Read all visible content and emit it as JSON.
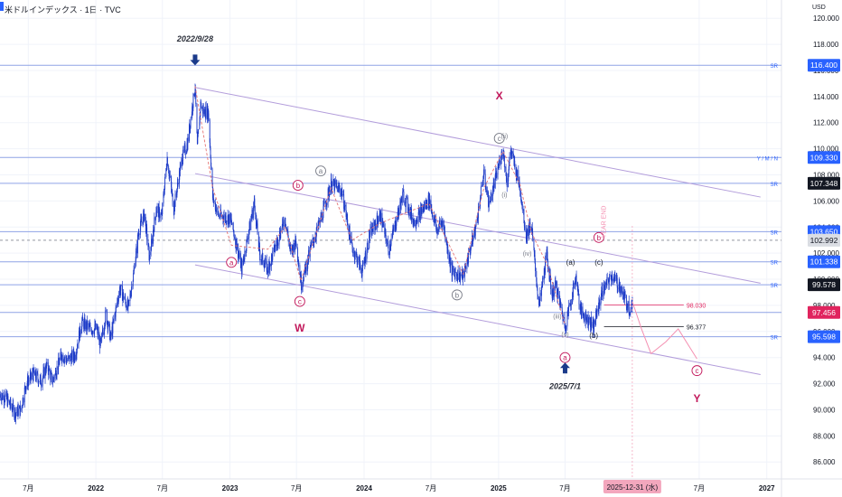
{
  "header": {
    "symbol_title": "米ドルインデックス · 1日 · TVC",
    "currency": "USD"
  },
  "colors": {
    "up": "#1e3cc8",
    "down": "#1e3cc8",
    "price_label_blue": "#2962ff",
    "price_label_black": "#131722",
    "price_label_red": "#e0245e",
    "price_label_grey": "#dadde3",
    "wave_red": "#c2185b",
    "channel": "#b39ddb",
    "sr_line": "#8fa3e6",
    "date_tag_bg": "#f3a7bd"
  },
  "chart_data": {
    "type": "candlestick",
    "title": "米ドルインデックス · 1日 · TVC",
    "ylim": [
      84.7,
      121.4
    ],
    "xlim": [
      "2021-04-15",
      "2027-02-10"
    ],
    "y_ticks": [
      86,
      88,
      90,
      92,
      94,
      96,
      98,
      100,
      102,
      104,
      106,
      108,
      110,
      112,
      114,
      116,
      118,
      120
    ],
    "y_tick_labels": [
      "86.000",
      "88.000",
      "90.000",
      "92.000",
      "94.000",
      "96.000",
      "98.000",
      "100.000",
      "102.000",
      "104.000",
      "106.000",
      "108.000",
      "110.000",
      "112.000",
      "114.000",
      "116.000",
      "118.000",
      "120.000"
    ],
    "x_ticks": [
      {
        "date": "2021-07-01",
        "label": "7月"
      },
      {
        "date": "2022-01-01",
        "label": "2022"
      },
      {
        "date": "2022-07-01",
        "label": "7月"
      },
      {
        "date": "2023-01-01",
        "label": "2023"
      },
      {
        "date": "2023-07-01",
        "label": "7月"
      },
      {
        "date": "2024-01-01",
        "label": "2024"
      },
      {
        "date": "2024-07-01",
        "label": "7月"
      },
      {
        "date": "2025-01-01",
        "label": "2025"
      },
      {
        "date": "2025-07-01",
        "label": "7月"
      },
      {
        "date": "2026-07-01",
        "label": "7月"
      },
      {
        "date": "2027-01-01",
        "label": "2027"
      }
    ],
    "date_tag": {
      "date": "2025-12-31",
      "label": "2025-12-31 (水)"
    },
    "price_path": [
      [
        "2021-04-15",
        91.2
      ],
      [
        "2021-05-01",
        90.9
      ],
      [
        "2021-05-25",
        89.8
      ],
      [
        "2021-06-10",
        90.0
      ],
      [
        "2021-06-25",
        92.0
      ],
      [
        "2021-07-15",
        92.7
      ],
      [
        "2021-08-05",
        92.2
      ],
      [
        "2021-08-20",
        93.4
      ],
      [
        "2021-09-05",
        92.2
      ],
      [
        "2021-09-30",
        94.2
      ],
      [
        "2021-10-15",
        93.8
      ],
      [
        "2021-11-05",
        94.2
      ],
      [
        "2021-11-24",
        96.7
      ],
      [
        "2021-12-15",
        96.2
      ],
      [
        "2022-01-03",
        96.2
      ],
      [
        "2022-01-14",
        94.9
      ],
      [
        "2022-01-28",
        97.4
      ],
      [
        "2022-02-10",
        95.5
      ],
      [
        "2022-03-07",
        99.3
      ],
      [
        "2022-03-30",
        97.8
      ],
      [
        "2022-04-14",
        100.5
      ],
      [
        "2022-04-28",
        103.8
      ],
      [
        "2022-05-13",
        105.0
      ],
      [
        "2022-05-27",
        101.6
      ],
      [
        "2022-06-14",
        105.4
      ],
      [
        "2022-06-29",
        104.8
      ],
      [
        "2022-07-14",
        109.3
      ],
      [
        "2022-08-01",
        105.4
      ],
      [
        "2022-08-23",
        109.2
      ],
      [
        "2022-09-07",
        110.4
      ],
      [
        "2022-09-28",
        114.8
      ],
      [
        "2022-10-04",
        110.1
      ],
      [
        "2022-10-13",
        113.4
      ],
      [
        "2022-10-21",
        112.8
      ],
      [
        "2022-11-03",
        112.9
      ],
      [
        "2022-11-15",
        106.3
      ],
      [
        "2022-12-01",
        104.9
      ],
      [
        "2022-12-15",
        104.8
      ],
      [
        "2023-01-03",
        104.6
      ],
      [
        "2023-02-02",
        100.8
      ],
      [
        "2023-03-08",
        105.9
      ],
      [
        "2023-03-23",
        101.9
      ],
      [
        "2023-04-14",
        100.8
      ],
      [
        "2023-05-31",
        104.7
      ],
      [
        "2023-06-15",
        102.0
      ],
      [
        "2023-06-30",
        103.0
      ],
      [
        "2023-07-14",
        99.6
      ],
      [
        "2023-08-10",
        102.5
      ],
      [
        "2023-09-01",
        104.2
      ],
      [
        "2023-10-03",
        107.3
      ],
      [
        "2023-11-01",
        106.8
      ],
      [
        "2023-11-29",
        102.5
      ],
      [
        "2023-12-27",
        100.6
      ],
      [
        "2024-01-16",
        103.4
      ],
      [
        "2024-02-14",
        104.9
      ],
      [
        "2024-03-08",
        102.3
      ],
      [
        "2024-04-16",
        106.5
      ],
      [
        "2024-05-16",
        104.4
      ],
      [
        "2024-06-26",
        106.1
      ],
      [
        "2024-07-17",
        103.7
      ],
      [
        "2024-08-01",
        104.5
      ],
      [
        "2024-08-27",
        100.6
      ],
      [
        "2024-09-27",
        100.2
      ],
      [
        "2024-10-31",
        104.0
      ],
      [
        "2024-11-22",
        108.1
      ],
      [
        "2024-12-06",
        105.7
      ],
      [
        "2025-01-13",
        110.0
      ],
      [
        "2025-01-24",
        107.4
      ],
      [
        "2025-02-03",
        109.9
      ],
      [
        "2025-02-28",
        107.1
      ],
      [
        "2025-03-17",
        103.4
      ],
      [
        "2025-03-31",
        104.2
      ],
      [
        "2025-04-21",
        97.9
      ],
      [
        "2025-05-12",
        101.9
      ],
      [
        "2025-05-26",
        98.9
      ],
      [
        "2025-06-06",
        99.5
      ],
      [
        "2025-07-01",
        96.4
      ],
      [
        "2025-07-31",
        100.2
      ],
      [
        "2025-08-12",
        97.6
      ],
      [
        "2025-09-17",
        96.4
      ],
      [
        "2025-10-08",
        98.9
      ],
      [
        "2025-11-05",
        100.3
      ],
      [
        "2025-11-28",
        99.4
      ],
      [
        "2025-12-09",
        98.6
      ],
      [
        "2025-12-24",
        97.7
      ],
      [
        "2025-12-31",
        98.3
      ]
    ],
    "projection_path": [
      [
        "2025-12-31",
        98.3
      ],
      [
        "2026-01-25",
        96.2
      ],
      [
        "2026-02-20",
        94.3
      ],
      [
        "2026-04-01",
        95.2
      ],
      [
        "2026-05-05",
        96.2
      ],
      [
        "2026-06-05",
        94.8
      ],
      [
        "2026-06-25",
        93.9
      ]
    ],
    "sr_levels": [
      {
        "value": 116.4,
        "label": "116.400",
        "tag": "SR",
        "style": "blue"
      },
      {
        "value": 109.33,
        "label": "109.330",
        "tag": "Y / M / N",
        "style": "blue"
      },
      {
        "value": 107.348,
        "label": "107.348",
        "tag": "SR",
        "style": "black"
      },
      {
        "value": 103.65,
        "label": "103.650",
        "tag": "SR",
        "style": "blue"
      },
      {
        "value": 102.992,
        "label": "102.992",
        "tag": "",
        "style": "grey"
      },
      {
        "value": 101.338,
        "label": "101.338",
        "tag": "SR",
        "style": "blue"
      },
      {
        "value": 99.578,
        "label": "99.578",
        "tag": "SR",
        "style": "black"
      },
      {
        "value": 97.456,
        "label": "97.456",
        "tag": "",
        "style": "red"
      },
      {
        "value": 95.598,
        "label": "95.598",
        "tag": "SR",
        "style": "blue"
      }
    ],
    "marker_levels": [
      {
        "value": 98.03,
        "label": "98.030",
        "from": "2025-10-15",
        "to": "2026-05-20",
        "color": "#e0245e"
      },
      {
        "value": 96.377,
        "label": "96.377",
        "from": "2025-10-15",
        "to": "2026-05-20",
        "color": "#131722"
      }
    ],
    "channels": [
      {
        "from": [
          "2022-09-28",
          114.7
        ],
        "to": [
          "2026-12-15",
          106.3
        ]
      },
      {
        "from": [
          "2022-09-28",
          108.1
        ],
        "to": [
          "2026-12-15",
          99.7
        ]
      },
      {
        "from": [
          "2022-09-28",
          101.1
        ],
        "to": [
          "2026-12-15",
          92.7
        ]
      }
    ],
    "wave_labels": [
      {
        "date": "2022-09-28",
        "value": 118.2,
        "text": "2022/9/28",
        "kind": "date-label"
      },
      {
        "date": "2023-01-05",
        "value": 101.3,
        "text": "a",
        "kind": "circle-red"
      },
      {
        "date": "2023-07-05",
        "value": 107.2,
        "text": "b",
        "kind": "circle-red"
      },
      {
        "date": "2023-07-10",
        "value": 98.3,
        "text": "c",
        "kind": "circle-red"
      },
      {
        "date": "2023-07-10",
        "value": 96.0,
        "text": "W",
        "kind": "big-red"
      },
      {
        "date": "2023-09-05",
        "value": 108.3,
        "text": "a",
        "kind": "circle-grey"
      },
      {
        "date": "2024-09-10",
        "value": 98.8,
        "text": "b",
        "kind": "circle-grey"
      },
      {
        "date": "2025-01-03",
        "value": 110.8,
        "text": "c",
        "kind": "circle-grey"
      },
      {
        "date": "2025-01-03",
        "value": 113.8,
        "text": "X",
        "kind": "big-red"
      },
      {
        "date": "2025-01-17",
        "value": 110.8,
        "text": "(ii)",
        "kind": "small-grey"
      },
      {
        "date": "2025-01-17",
        "value": 106.3,
        "text": "(i)",
        "kind": "small-grey"
      },
      {
        "date": "2025-03-20",
        "value": 101.8,
        "text": "(iv)",
        "kind": "small-grey"
      },
      {
        "date": "2025-06-10",
        "value": 97.0,
        "text": "(iii)",
        "kind": "small-grey"
      },
      {
        "date": "2025-07-01",
        "value": 95.6,
        "text": "(v)",
        "kind": "small-grey"
      },
      {
        "date": "2025-07-01",
        "value": 94.0,
        "text": "a",
        "kind": "circle-red"
      },
      {
        "date": "2025-07-01",
        "value": 91.6,
        "text": "2025/7/1",
        "kind": "date-label"
      },
      {
        "date": "2025-07-16",
        "value": 101.1,
        "text": "(a)",
        "kind": "small-black"
      },
      {
        "date": "2025-09-17",
        "value": 95.5,
        "text": "(b)",
        "kind": "small-black"
      },
      {
        "date": "2025-10-01",
        "value": 101.1,
        "text": "(c)",
        "kind": "small-black"
      },
      {
        "date": "2025-10-01",
        "value": 103.2,
        "text": "b",
        "kind": "circle-red"
      },
      {
        "date": "2025-10-20",
        "value": 104.4,
        "text": "YEAR END",
        "kind": "vertical-pink"
      },
      {
        "date": "2026-06-25",
        "value": 93.0,
        "text": "c",
        "kind": "circle-red"
      },
      {
        "date": "2026-06-25",
        "value": 90.6,
        "text": "Y",
        "kind": "big-red"
      }
    ],
    "arrows": [
      {
        "date": "2022-09-28",
        "value": 116.8,
        "direction": "down"
      },
      {
        "date": "2025-07-01",
        "value": 93.2,
        "direction": "up"
      }
    ],
    "wave_dashed": [
      [
        "2022-09-28",
        114.8
      ],
      [
        "2022-11-15",
        107.0
      ],
      [
        "2023-01-05",
        102.6
      ],
      [
        "2023-04-14",
        102.3
      ],
      [
        "2023-05-31",
        104.0
      ],
      [
        "2023-07-13",
        99.9
      ],
      [
        "2023-10-03",
        107.0
      ],
      [
        "2023-11-29",
        103.0
      ],
      [
        "2024-02-14",
        104.3
      ],
      [
        "2024-06-26",
        105.8
      ],
      [
        "2024-09-27",
        100.4
      ],
      [
        "2024-11-22",
        107.0
      ],
      [
        "2025-01-13",
        109.8
      ],
      [
        "2025-02-28",
        107.3
      ],
      [
        "2025-03-31",
        103.6
      ],
      [
        "2025-05-12",
        101.2
      ],
      [
        "2025-07-01",
        96.5
      ]
    ]
  }
}
